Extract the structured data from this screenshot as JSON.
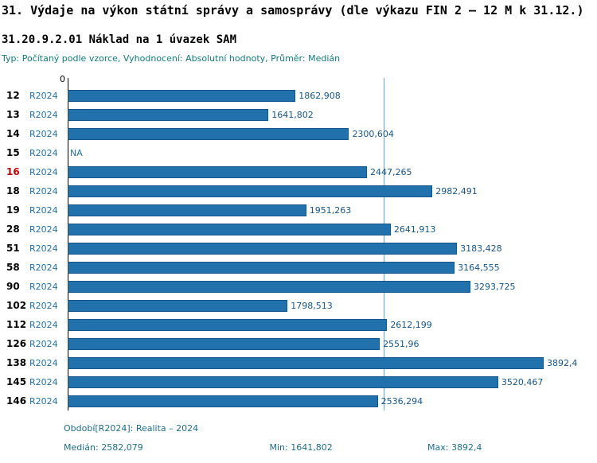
{
  "header": {
    "title": "31. Výdaje na výkon státní správy a samosprávy (dle výkazu FIN 2 – 12 M k 31.12.)",
    "subtitle": "31.20.9.2.01 Náklad na 1 úvazek SAM",
    "type_line": "Typ: Počítaný podle vzorce, Vyhodnocení: Absolutní hodnoty, Průměr: Medián"
  },
  "chart_data": {
    "type": "bar",
    "orientation": "horizontal",
    "axis_zero_label": "0",
    "period_label": "R2024",
    "na_label": "NA",
    "highlighted_category": "16",
    "categories": [
      "12",
      "13",
      "14",
      "15",
      "16",
      "18",
      "19",
      "28",
      "51",
      "58",
      "90",
      "102",
      "112",
      "126",
      "138",
      "145",
      "146"
    ],
    "values": [
      1862.908,
      1641.802,
      2300.604,
      null,
      2447.265,
      2982.491,
      1951.263,
      2641.913,
      3183.428,
      3164.555,
      3293.725,
      1798.513,
      2612.199,
      2551.96,
      3892.4,
      3520.467,
      2536.294
    ],
    "value_labels": [
      "1862,908",
      "1641,802",
      "2300,604",
      null,
      "2447,265",
      "2982,491",
      "1951,263",
      "2641,913",
      "3183,428",
      "3164,555",
      "3293,725",
      "1798,513",
      "2612,199",
      "2551,96",
      "3892,4",
      "3520,467",
      "2536,294"
    ],
    "median_line": 2582.079,
    "xlim": [
      0,
      3892.4
    ],
    "grid": false,
    "legend": "none",
    "bar_color": "#2172ac",
    "highlight_color": "#cc0000",
    "median_line_color": "#6aa5cc"
  },
  "footer": {
    "period": "Období[R2024]: Realita – 2024",
    "median": "Medián: 2582,079",
    "min": "Min: 1641,802",
    "max": "Max: 3892,4"
  }
}
